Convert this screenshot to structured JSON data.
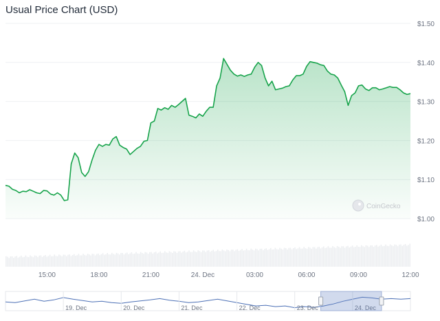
{
  "chart_data": {
    "type": "area",
    "title": "Usual Price Chart (USD)",
    "currency": "USD",
    "watermark": "CoinGecko",
    "line_color": "#16a34a",
    "fill_color": "#16a34a",
    "ylim": [
      1.0,
      1.5
    ],
    "y_ticks": [
      {
        "value": 1.5,
        "label": "$1.50"
      },
      {
        "value": 1.4,
        "label": "$1.40"
      },
      {
        "value": 1.3,
        "label": "$1.30"
      },
      {
        "value": 1.2,
        "label": "$1.20"
      },
      {
        "value": 1.1,
        "label": "$1.10"
      },
      {
        "value": 1.0,
        "label": "$1.00"
      }
    ],
    "x_range": [
      12.6,
      36.0
    ],
    "x_ticks": [
      {
        "value": 15,
        "label": "15:00"
      },
      {
        "value": 18,
        "label": "18:00"
      },
      {
        "value": 21,
        "label": "21:00"
      },
      {
        "value": 24,
        "label": "24. Dec"
      },
      {
        "value": 27,
        "label": "03:00"
      },
      {
        "value": 30,
        "label": "06:00"
      },
      {
        "value": 33,
        "label": "09:00"
      },
      {
        "value": 36,
        "label": "12:00"
      }
    ],
    "series": [
      {
        "x": [
          12.6,
          12.8,
          13.0,
          13.2,
          13.4,
          13.6,
          13.8,
          14.0,
          14.2,
          14.4,
          14.6,
          14.8,
          15.0,
          15.2,
          15.4,
          15.6,
          15.8,
          16.0,
          16.2,
          16.4,
          16.6,
          16.8,
          17.0,
          17.2,
          17.4,
          17.6,
          17.8,
          18.0,
          18.2,
          18.4,
          18.6,
          18.8,
          19.0,
          19.2,
          19.4,
          19.6,
          19.8,
          20.0,
          20.2,
          20.4,
          20.6,
          20.8,
          21.0,
          21.2,
          21.4,
          21.6,
          21.8,
          22.0,
          22.2,
          22.4,
          22.6,
          22.8,
          23.0,
          23.2,
          23.4,
          23.6,
          23.8,
          24.0,
          24.2,
          24.4,
          24.6,
          24.8,
          25.0,
          25.2,
          25.4,
          25.6,
          25.8,
          26.0,
          26.2,
          26.4,
          26.6,
          26.8,
          27.0,
          27.2,
          27.4,
          27.6,
          27.8,
          28.0,
          28.2,
          28.4,
          28.6,
          28.8,
          29.0,
          29.2,
          29.4,
          29.6,
          29.8,
          30.0,
          30.2,
          30.4,
          30.6,
          30.8,
          31.0,
          31.2,
          31.4,
          31.6,
          31.8,
          32.0,
          32.2,
          32.4,
          32.6,
          32.8,
          33.0,
          33.2,
          33.4,
          33.6,
          33.8,
          34.0,
          34.2,
          34.4,
          34.6,
          34.8,
          35.0,
          35.2,
          35.4,
          35.6,
          35.8,
          36.0
        ],
        "values": [
          1.085,
          1.083,
          1.075,
          1.072,
          1.066,
          1.07,
          1.069,
          1.074,
          1.07,
          1.066,
          1.064,
          1.072,
          1.071,
          1.063,
          1.06,
          1.066,
          1.06,
          1.046,
          1.048,
          1.14,
          1.168,
          1.156,
          1.118,
          1.108,
          1.12,
          1.15,
          1.175,
          1.19,
          1.185,
          1.19,
          1.188,
          1.204,
          1.21,
          1.188,
          1.182,
          1.178,
          1.164,
          1.172,
          1.18,
          1.185,
          1.198,
          1.2,
          1.245,
          1.25,
          1.282,
          1.278,
          1.284,
          1.28,
          1.29,
          1.285,
          1.292,
          1.3,
          1.308,
          1.265,
          1.262,
          1.258,
          1.268,
          1.262,
          1.275,
          1.285,
          1.285,
          1.34,
          1.36,
          1.41,
          1.395,
          1.38,
          1.37,
          1.365,
          1.368,
          1.364,
          1.368,
          1.37,
          1.388,
          1.4,
          1.392,
          1.36,
          1.34,
          1.352,
          1.33,
          1.332,
          1.334,
          1.338,
          1.34,
          1.355,
          1.366,
          1.366,
          1.37,
          1.39,
          1.402,
          1.4,
          1.398,
          1.394,
          1.392,
          1.378,
          1.37,
          1.368,
          1.36,
          1.342,
          1.325,
          1.29,
          1.315,
          1.322,
          1.34,
          1.342,
          1.332,
          1.328,
          1.335,
          1.335,
          1.33,
          1.332,
          1.335,
          1.338,
          1.336,
          1.336,
          1.33,
          1.322,
          1.318,
          1.32
        ]
      }
    ],
    "navigator": {
      "x_range": [
        18.0,
        25.0
      ],
      "x_ticks": [
        {
          "value": 19,
          "label": "19. Dec"
        },
        {
          "value": 20,
          "label": "20. Dec"
        },
        {
          "value": 21,
          "label": "21. Dec"
        },
        {
          "value": 22,
          "label": "22. Dec"
        },
        {
          "value": 23,
          "label": "23. Dec"
        },
        {
          "value": 24,
          "label": "24. Dec"
        }
      ],
      "selection": [
        23.45,
        24.5
      ],
      "values": [
        1.22,
        1.2,
        1.25,
        1.3,
        1.24,
        1.28,
        1.35,
        1.3,
        1.26,
        1.22,
        1.24,
        1.2,
        1.18,
        1.22,
        1.25,
        1.28,
        1.32,
        1.27,
        1.24,
        1.2,
        1.22,
        1.26,
        1.3,
        1.25,
        1.2,
        1.15,
        1.1,
        1.12,
        1.08,
        1.1,
        1.05,
        1.08,
        1.06,
        1.1,
        1.16,
        1.24,
        1.3,
        1.36,
        1.34,
        1.3,
        1.32,
        1.3,
        1.32
      ]
    }
  }
}
